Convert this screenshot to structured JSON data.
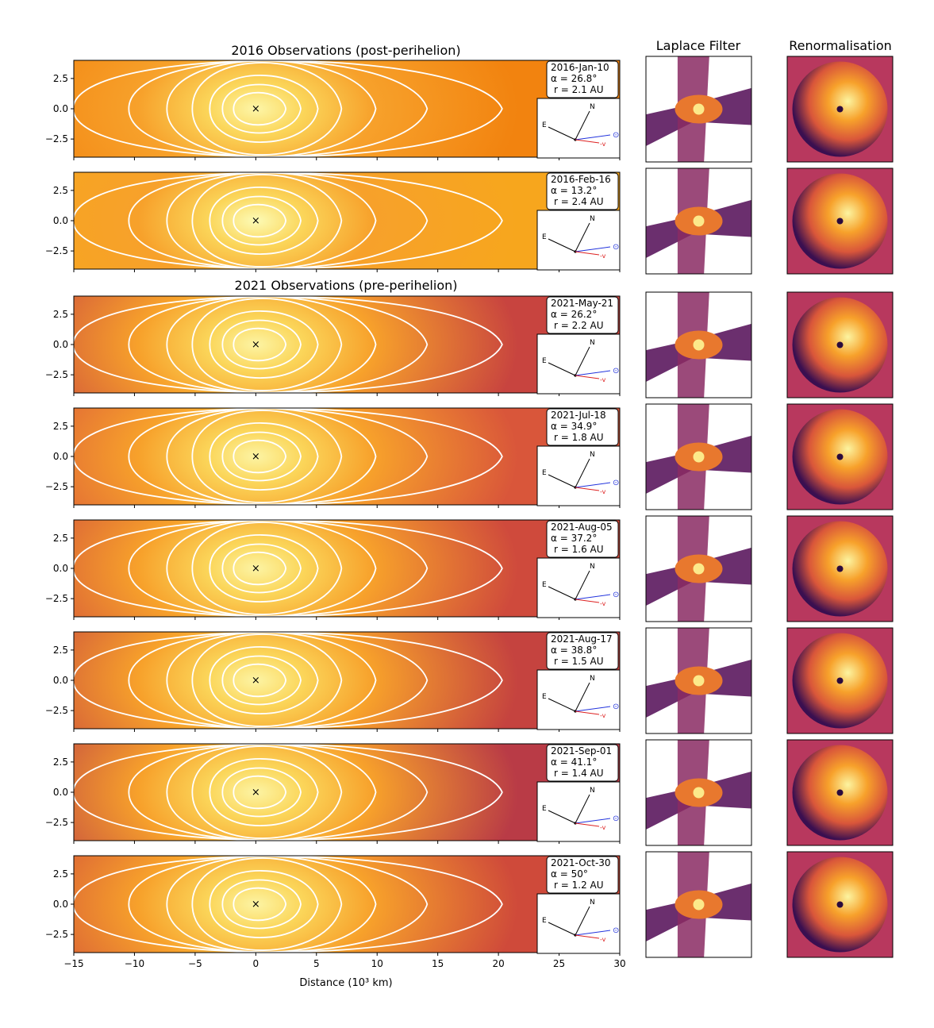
{
  "headings": {
    "section_2016": "2016 Observations (post-perihelion)",
    "section_2021": "2021 Observations (pre-perihelion)",
    "laplace": "Laplace Filter",
    "renorm": "Renormalisation"
  },
  "chart_data": {
    "type": "heatmap",
    "xlabel": "Distance (10³ km)",
    "x_ticks": [
      "−15",
      "−10",
      "−5",
      "0",
      "5",
      "10",
      "15",
      "20",
      "25",
      "30"
    ],
    "y_ticks": [
      "2.5",
      "0.0",
      "−2.5"
    ],
    "xlim": [
      -15,
      30
    ],
    "ylim": [
      -4,
      4
    ],
    "nucleus_marker": "×",
    "compass": {
      "north": "N",
      "east": "E",
      "velocity": "-v",
      "sun": "⊙"
    },
    "grid": false,
    "colormap": "inferno",
    "observations": [
      {
        "date": "2016-Jan-10",
        "alpha": "α = 26.8°",
        "r": "r = 2.1 AU",
        "bg": "#f2830f",
        "core": "#fdf6a8"
      },
      {
        "date": "2016-Feb-16",
        "alpha": "α = 13.2°",
        "r": "r = 2.4 AU",
        "bg": "#f7a61d",
        "core": "#fcfbb6"
      },
      {
        "date": "2021-May-21",
        "alpha": "α = 26.2°",
        "r": "r = 2.2 AU",
        "bg": "#c8443f",
        "core": "#fcf4a4"
      },
      {
        "date": "2021-Jul-18",
        "alpha": "α = 34.9°",
        "r": "r = 1.8 AU",
        "bg": "#d9563a",
        "core": "#fcf4a4"
      },
      {
        "date": "2021-Aug-05",
        "alpha": "α = 37.2°",
        "r": "r = 1.6 AU",
        "bg": "#cf4a3c",
        "core": "#fcf4a4"
      },
      {
        "date": "2021-Aug-17",
        "alpha": "α = 38.8°",
        "r": "r = 1.5 AU",
        "bg": "#c5433f",
        "core": "#fcf4a4"
      },
      {
        "date": "2021-Sep-01",
        "alpha": "α = 41.1°",
        "r": "r = 1.4 AU",
        "bg": "#b93b46",
        "core": "#fcf4a4"
      },
      {
        "date": "2021-Oct-30",
        "alpha": "α = 50°",
        "r": "r = 1.2 AU",
        "bg": "#cf4a3a",
        "core": "#fcf4a4"
      }
    ]
  }
}
